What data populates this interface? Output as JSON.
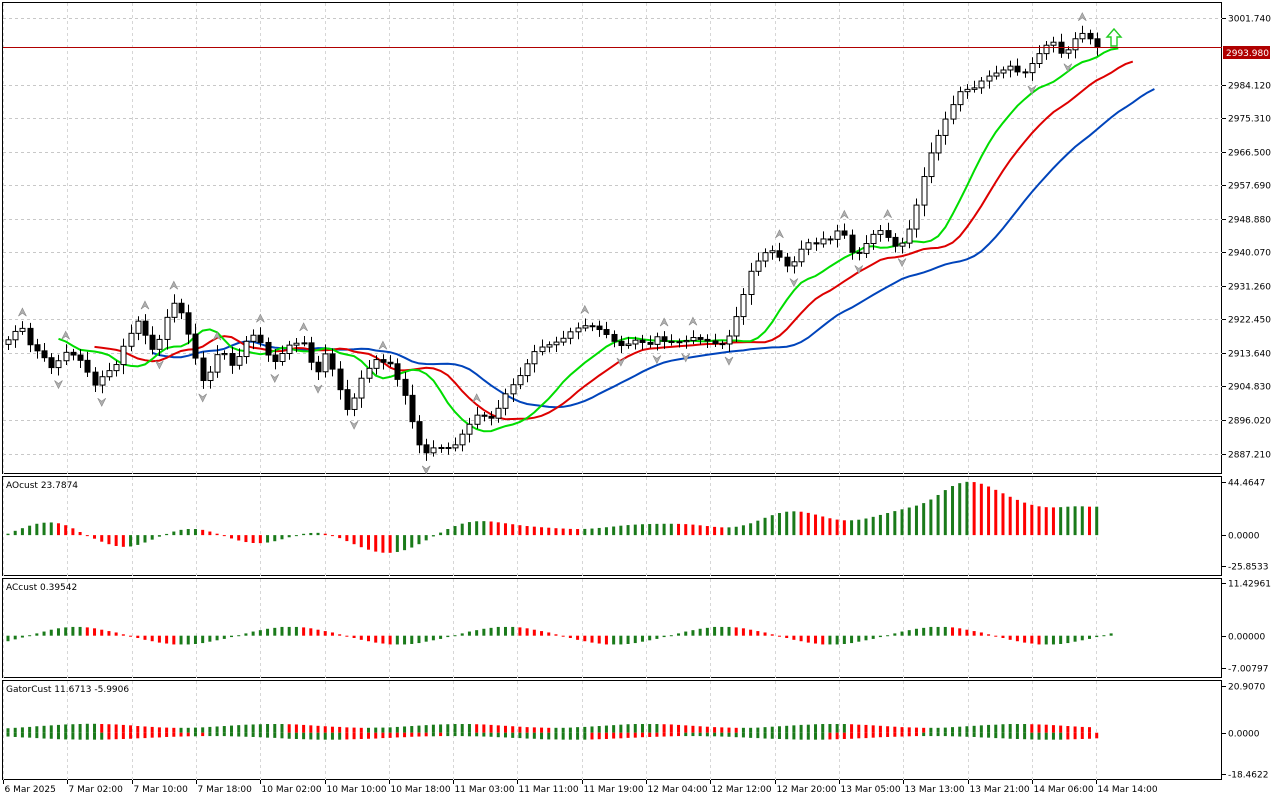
{
  "chart_data": [
    {
      "type": "candlestick",
      "panel": "price",
      "current_price": "2993.980",
      "y_ticks": [
        "3001.740",
        "2984.120",
        "2975.310",
        "2966.500",
        "2957.690",
        "2948.880",
        "2940.070",
        "2931.260",
        "2922.450",
        "2913.640",
        "2904.830",
        "2896.020",
        "2887.210"
      ],
      "ylim": [
        2882.1,
        3005.6
      ],
      "close": [
        2917.1,
        2919.3,
        2920.1,
        2915.8,
        2914.2,
        2912.4,
        2909.8,
        2911.6,
        2913.8,
        2913.1,
        2911.7,
        2908.6,
        2905.2,
        2907.4,
        2909.0,
        2910.6,
        2915.4,
        2918.8,
        2922.0,
        2918.3,
        2914.6,
        2917.2,
        2923.0,
        2926.7,
        2924.2,
        2918.6,
        2912.3,
        2906.4,
        2908.6,
        2913.2,
        2913.5,
        2910.4,
        2912.7,
        2916.7,
        2918.3,
        2916.4,
        2913.1,
        2911.4,
        2913.5,
        2915.7,
        2916.2,
        2916.3,
        2911.2,
        2908.7,
        2913.4,
        2909.4,
        2904.0,
        2898.8,
        2901.8,
        2907.0,
        2909.6,
        2911.9,
        2911.2,
        2910.8,
        2906.7,
        2902.5,
        2895.6,
        2889.5,
        2887.4,
        2888.7,
        2888.8,
        2888.7,
        2889.5,
        2892.3,
        2894.9,
        2897.3,
        2897.0,
        2896.5,
        2899.1,
        2902.9,
        2905.3,
        2907.7,
        2910.8,
        2914.0,
        2915.2,
        2915.8,
        2916.5,
        2917.5,
        2919.2,
        2920.2,
        2920.8,
        2920.7,
        2919.8,
        2918.5,
        2916.7,
        2915.6,
        2916.0,
        2917.0,
        2916.4,
        2915.9,
        2917.9,
        2916.7,
        2916.4,
        2916.6,
        2916.9,
        2917.7,
        2917.2,
        2916.8,
        2916.1,
        2916.0,
        2918.1,
        2923.2,
        2929.0,
        2935.1,
        2937.8,
        2940.0,
        2940.5,
        2938.8,
        2936.5,
        2937.6,
        2940.9,
        2942.6,
        2942.3,
        2943.6,
        2943.5,
        2945.7,
        2944.6,
        2940.1,
        2939.8,
        2942.4,
        2944.8,
        2945.8,
        2944.0,
        2941.7,
        2942.5,
        2946.2,
        2952.5,
        2960.0,
        2966.2,
        2970.8,
        2975.1,
        2978.9,
        2982.3,
        2982.9,
        2983.3,
        2985.1,
        2986.4,
        2987.2,
        2988.0,
        2989.0,
        2987.5,
        2987.3,
        2989.7,
        2992.3,
        2994.5,
        2995.3,
        2992.4,
        2993.3,
        2996.2,
        2997.6,
        2996.2,
        2993.9
      ],
      "ao": [
        1.2,
        3.6,
        5.8,
        7.9,
        9.5,
        10.4,
        10.6,
        9.9,
        8.3,
        5.7,
        2.6,
        -0.3,
        -3.0,
        -5.5,
        -7.6,
        -9.1,
        -9.8,
        -9.5,
        -8.2,
        -6.2,
        -3.8,
        -1.3,
        1.0,
        3.0,
        4.4,
        5.1,
        5.1,
        4.4,
        3.0,
        1.2,
        -0.8,
        -2.8,
        -4.5,
        -5.8,
        -6.6,
        -6.7,
        -6.2,
        -5.1,
        -3.5,
        -1.8,
        -0.2,
        1.1,
        1.8,
        1.9,
        1.2,
        -0.3,
        -2.5,
        -5.0,
        -7.6,
        -10.1,
        -12.2,
        -13.8,
        -14.7,
        -14.8,
        -14.1,
        -12.6,
        -10.4,
        -7.6,
        -4.4,
        -1.1,
        2.1,
        5.1,
        7.6,
        9.6,
        10.9,
        11.6,
        11.7,
        11.4,
        10.7,
        9.9,
        9.1,
        8.3,
        7.6,
        7.1,
        6.6,
        6.2,
        5.8,
        5.5,
        5.2,
        5.1,
        5.2,
        5.5,
        6.0,
        6.6,
        7.2,
        7.9,
        8.4,
        8.8,
        9.1,
        9.3,
        9.4,
        9.5,
        9.5,
        9.4,
        9.2,
        8.8,
        8.2,
        7.6,
        6.9,
        6.5,
        6.5,
        7.0,
        8.2,
        9.9,
        12.1,
        14.5,
        16.7,
        18.5,
        19.6,
        19.9,
        19.6,
        18.6,
        17.2,
        15.6,
        14.1,
        13.0,
        12.4,
        12.4,
        12.9,
        13.9,
        15.3,
        16.9,
        18.5,
        20.1,
        21.6,
        23.1,
        24.7,
        26.8,
        29.8,
        33.6,
        37.7,
        41.1,
        43.5,
        44.6,
        44.4,
        43.0,
        40.7,
        37.9,
        35.0,
        32.1,
        29.5,
        27.2,
        25.4,
        24.1,
        23.4,
        23.2,
        23.4,
        23.8,
        24.1,
        24.1,
        23.8,
        23.8
      ],
      "ac": [
        -1.2,
        -0.8,
        -0.4,
        0.1,
        0.5,
        0.9,
        1.3,
        1.6,
        1.8,
        1.9,
        1.9,
        1.8,
        1.6,
        1.3,
        1.0,
        0.7,
        0.3,
        -0.1,
        -0.5,
        -0.9,
        -1.2,
        -1.5,
        -1.7,
        -1.9,
        -1.9,
        -1.9,
        -1.8,
        -1.6,
        -1.3,
        -1.0,
        -0.7,
        -0.3,
        0.1,
        0.5,
        0.9,
        1.2,
        1.5,
        1.7,
        1.9,
        1.9,
        1.9,
        1.8,
        1.6,
        1.3,
        1.0,
        0.7,
        0.3,
        -0.1,
        -0.5,
        -0.9,
        -1.2,
        -1.5,
        -1.7,
        -1.9,
        -1.9,
        -1.9,
        -1.8,
        -1.6,
        -1.3,
        -1.0,
        -0.7,
        -0.3,
        0.1,
        0.5,
        0.9,
        1.2,
        1.5,
        1.7,
        1.9,
        1.9,
        1.9,
        1.8,
        1.6,
        1.3,
        1.0,
        0.7,
        0.3,
        -0.1,
        -0.5,
        -0.9,
        -1.2,
        -1.5,
        -1.7,
        -1.9,
        -1.9,
        -1.9,
        -1.8,
        -1.6,
        -1.3,
        -1.0,
        -0.7,
        -0.3,
        0.1,
        0.5,
        0.9,
        1.2,
        1.5,
        1.7,
        1.9,
        1.9,
        1.9,
        1.8,
        1.6,
        1.3,
        1.0,
        0.7,
        0.3,
        -0.1,
        -0.5,
        -0.9,
        -1.2,
        -1.5,
        -1.7,
        -1.9,
        -1.9,
        -1.9,
        -1.8,
        -1.6,
        -1.3,
        -1.0,
        -0.7,
        -0.3,
        0.1,
        0.5,
        0.9,
        1.2,
        1.5,
        1.7,
        1.9,
        1.9,
        1.9,
        1.8,
        1.6,
        1.3,
        1.0,
        0.7,
        0.3,
        -0.1,
        -0.5,
        -0.9,
        -1.2,
        -1.5,
        -1.7,
        -1.9,
        -1.9,
        -1.9,
        -1.8,
        -1.6,
        -1.3,
        -1.0,
        -0.7,
        -0.3,
        0.1,
        0.5
      ],
      "gator_upper": [
        2.0,
        2.2,
        2.4,
        2.6,
        2.9,
        3.1,
        3.3,
        3.5,
        3.7,
        3.8,
        3.9,
        4.0,
        4.0,
        3.9,
        3.8,
        3.7,
        3.5,
        3.3,
        3.0,
        2.8,
        2.6,
        2.4,
        2.3,
        2.2,
        2.2,
        2.2,
        2.3,
        2.4,
        2.6,
        2.8,
        3.0,
        3.2,
        3.4,
        3.6,
        3.7,
        3.8,
        3.9,
        3.9,
        3.9,
        3.8,
        3.7,
        3.5,
        3.3,
        3.1,
        2.9,
        2.7,
        2.6,
        2.4,
        2.3,
        2.2,
        2.2,
        2.3,
        2.3,
        2.4,
        2.6,
        2.8,
        3.0,
        3.2,
        3.4,
        3.6,
        3.7,
        3.8,
        3.9,
        3.9,
        3.9,
        3.8,
        3.7,
        3.5,
        3.3,
        3.1,
        2.9,
        2.7,
        2.5,
        2.4,
        2.3,
        2.2,
        2.2,
        2.2,
        2.3,
        2.5,
        2.6,
        2.8,
        3.0,
        3.2,
        3.4,
        3.6,
        3.8,
        3.9,
        3.9,
        3.9,
        3.9,
        3.8,
        3.7,
        3.5,
        3.3,
        3.1,
        2.9,
        2.7,
        2.5,
        2.4,
        2.3,
        2.2,
        2.2,
        2.2,
        2.3,
        2.5,
        2.7,
        2.9,
        3.1,
        3.3,
        3.5,
        3.6,
        3.8,
        3.9,
        3.9,
        3.9,
        3.9,
        3.8,
        3.6,
        3.5,
        3.3,
        3.1,
        2.9,
        2.7,
        2.5,
        2.4,
        2.3,
        2.2,
        2.2,
        2.2,
        2.3,
        2.5,
        2.7,
        2.9,
        3.1,
        3.3,
        3.5,
        3.6,
        3.8,
        3.9,
        3.9,
        3.9,
        3.8,
        3.7,
        3.6,
        3.4,
        3.2,
        3.0,
        2.8,
        2.6,
        2.5
      ],
      "gator_lower": [
        -1.7,
        -1.9,
        -2.1,
        -2.2,
        -2.4,
        -2.6,
        -2.7,
        -2.9,
        -3.0,
        -3.0,
        -3.1,
        -3.1,
        -3.1,
        -3.1,
        -3.0,
        -2.9,
        -2.8,
        -2.7,
        -2.5,
        -2.4,
        -2.2,
        -2.1,
        -1.9,
        -1.8,
        -1.7,
        -1.6,
        -1.6,
        -1.5,
        -1.5,
        -1.5,
        -1.5,
        -1.6,
        -1.7,
        -1.8,
        -1.9,
        -2.0,
        -2.2,
        -2.3,
        -2.5,
        -2.7,
        -2.8,
        -2.9,
        -3.0,
        -3.1,
        -3.1,
        -3.1,
        -3.1,
        -3.0,
        -2.9,
        -2.8,
        -2.7,
        -2.6,
        -2.4,
        -2.3,
        -2.1,
        -2.0,
        -1.8,
        -1.7,
        -1.6,
        -1.6,
        -1.5,
        -1.5,
        -1.5,
        -1.5,
        -1.6,
        -1.6,
        -1.7,
        -1.8,
        -2.0,
        -2.1,
        -2.3,
        -2.4,
        -2.6,
        -2.7,
        -2.9,
        -3.0,
        -3.0,
        -3.1,
        -3.1,
        -3.1,
        -3.1,
        -3.0,
        -2.9,
        -2.8,
        -2.6,
        -2.5,
        -2.3,
        -2.2,
        -2.0,
        -1.9,
        -1.8,
        -1.7,
        -1.6,
        -1.5,
        -1.5,
        -1.5,
        -1.5,
        -1.6,
        -1.6,
        -1.7,
        -1.8,
        -2.0,
        -2.1,
        -2.3,
        -2.4,
        -2.6,
        -2.7,
        -2.8,
        -2.9,
        -3.0,
        -3.1,
        -3.1,
        -3.1,
        -3.1,
        -3.0,
        -2.9,
        -2.8,
        -2.7,
        -2.5,
        -2.4,
        -2.2,
        -2.0,
        -1.9,
        -1.8,
        -1.7,
        -1.6,
        -1.5,
        -1.5,
        -1.5,
        -1.5,
        -1.5,
        -1.6,
        -1.7,
        -1.8,
        -1.9,
        -2.1,
        -2.2,
        -2.4,
        -2.5,
        -2.7,
        -2.8,
        -2.9,
        -3.0,
        -3.1,
        -3.1,
        -3.1,
        -3.1,
        -3.0,
        -2.9,
        -2.8,
        -2.7,
        -2.5
      ],
      "colors": {
        "bull": "#ffffff",
        "bear": "#000000",
        "green": "#1a7a1a",
        "red": "#ff0000",
        "jaw": "#0044bb",
        "teeth": "#dd0000",
        "lips": "#00dd00",
        "price_line": "#b00000"
      }
    }
  ],
  "indicators": {
    "ao": {
      "label": "AOcust 23.7874",
      "ticks": [
        "44.4647",
        "0.0000",
        "-25.8533"
      ],
      "ylim": [
        -25.8533,
        44.4647
      ]
    },
    "ac": {
      "label": "ACcust 0.39542",
      "ticks": [
        "11.42961",
        "0.00000",
        "-7.00797"
      ],
      "ylim": [
        -7.00797,
        11.42961
      ]
    },
    "gator": {
      "label": "GatorCust 11.6713 -5.9906",
      "ticks": [
        "20.9070",
        "0.0000",
        "-18.4622"
      ],
      "ylim": [
        -18.4622,
        20.907
      ]
    }
  },
  "x_axis": {
    "labels": [
      "6 Mar 2025",
      "7 Mar 02:00",
      "7 Mar 10:00",
      "7 Mar 18:00",
      "10 Mar 02:00",
      "10 Mar 10:00",
      "10 Mar 18:00",
      "11 Mar 03:00",
      "11 Mar 11:00",
      "11 Mar 19:00",
      "12 Mar 04:00",
      "12 Mar 12:00",
      "12 Mar 20:00",
      "13 Mar 05:00",
      "13 Mar 13:00",
      "13 Mar 21:00",
      "14 Mar 06:00",
      "14 Mar 14:00"
    ]
  }
}
